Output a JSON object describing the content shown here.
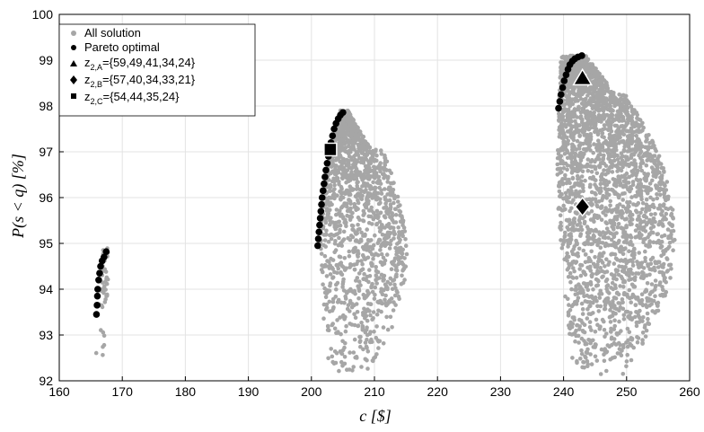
{
  "chart_data": {
    "type": "scatter",
    "xlabel": "c [$]",
    "ylabel": "P(s < q) [%]",
    "xlim": [
      160,
      260
    ],
    "ylim": [
      92,
      100
    ],
    "x_ticks": [
      160,
      170,
      180,
      190,
      200,
      210,
      220,
      230,
      240,
      250,
      260
    ],
    "y_ticks": [
      92,
      93,
      94,
      95,
      96,
      97,
      98,
      99,
      100
    ],
    "grid": true,
    "legend_position": "top-left",
    "colors": {
      "all_solution": "#a6a6a6",
      "pareto": "#000000",
      "markers": "#000000",
      "marker_edge": "#ffffff"
    },
    "legend": [
      {
        "key": "all",
        "marker": "dot-gray",
        "label": "All solution"
      },
      {
        "key": "pareto",
        "marker": "dot-black",
        "label": "Pareto optimal"
      },
      {
        "key": "zA",
        "marker": "triangle",
        "label_main": "z",
        "label_sub": "2,A",
        "label_rest": "={59,49,41,34,24}"
      },
      {
        "key": "zB",
        "marker": "diamond",
        "label_main": "z",
        "label_sub": "2,B",
        "label_rest": "={57,40,34,33,21}"
      },
      {
        "key": "zC",
        "marker": "square",
        "label_main": "z",
        "label_sub": "2,C",
        "label_rest": "={54,44,35,24}"
      }
    ],
    "series": [
      {
        "name": "All solution",
        "clusters": [
          {
            "x_range": [
              165.5,
              168.0
            ],
            "y_range": [
              92.3,
              94.9
            ],
            "points": 40
          },
          {
            "x_range": [
              200.5,
              214.0
            ],
            "y_range": [
              92.2,
              97.9
            ],
            "points": 1400
          },
          {
            "x_range": [
              238.5,
              257.0
            ],
            "y_range": [
              92.1,
              99.1
            ],
            "points": 2600
          }
        ]
      },
      {
        "name": "Pareto optimal",
        "points": [
          [
            165.9,
            93.45
          ],
          [
            166.0,
            93.65
          ],
          [
            166.05,
            93.85
          ],
          [
            166.1,
            94.0
          ],
          [
            166.25,
            94.2
          ],
          [
            166.4,
            94.35
          ],
          [
            166.55,
            94.5
          ],
          [
            166.8,
            94.62
          ],
          [
            167.1,
            94.7
          ],
          [
            167.45,
            94.82
          ],
          [
            201.0,
            94.95
          ],
          [
            201.1,
            95.1
          ],
          [
            201.2,
            95.25
          ],
          [
            201.3,
            95.4
          ],
          [
            201.4,
            95.55
          ],
          [
            201.5,
            95.7
          ],
          [
            201.6,
            95.85
          ],
          [
            201.7,
            96.0
          ],
          [
            201.85,
            96.15
          ],
          [
            202.0,
            96.3
          ],
          [
            202.15,
            96.45
          ],
          [
            202.3,
            96.6
          ],
          [
            202.5,
            96.75
          ],
          [
            202.7,
            96.9
          ],
          [
            202.9,
            97.05
          ],
          [
            203.1,
            97.2
          ],
          [
            203.35,
            97.35
          ],
          [
            203.6,
            97.5
          ],
          [
            203.9,
            97.62
          ],
          [
            204.25,
            97.72
          ],
          [
            204.6,
            97.8
          ],
          [
            205.0,
            97.86
          ],
          [
            239.2,
            97.95
          ],
          [
            239.4,
            98.1
          ],
          [
            239.6,
            98.25
          ],
          [
            239.85,
            98.4
          ],
          [
            240.1,
            98.55
          ],
          [
            240.4,
            98.68
          ],
          [
            240.7,
            98.8
          ],
          [
            241.0,
            98.9
          ],
          [
            241.4,
            98.98
          ],
          [
            241.8,
            99.03
          ],
          [
            242.3,
            99.07
          ],
          [
            242.9,
            99.1
          ]
        ]
      },
      {
        "name": "z2,A",
        "marker": "triangle",
        "x": 243.0,
        "y": 98.6
      },
      {
        "name": "z2,B",
        "marker": "diamond",
        "x": 243.0,
        "y": 95.8
      },
      {
        "name": "z2,C",
        "marker": "square",
        "x": 203.0,
        "y": 97.05
      }
    ]
  }
}
